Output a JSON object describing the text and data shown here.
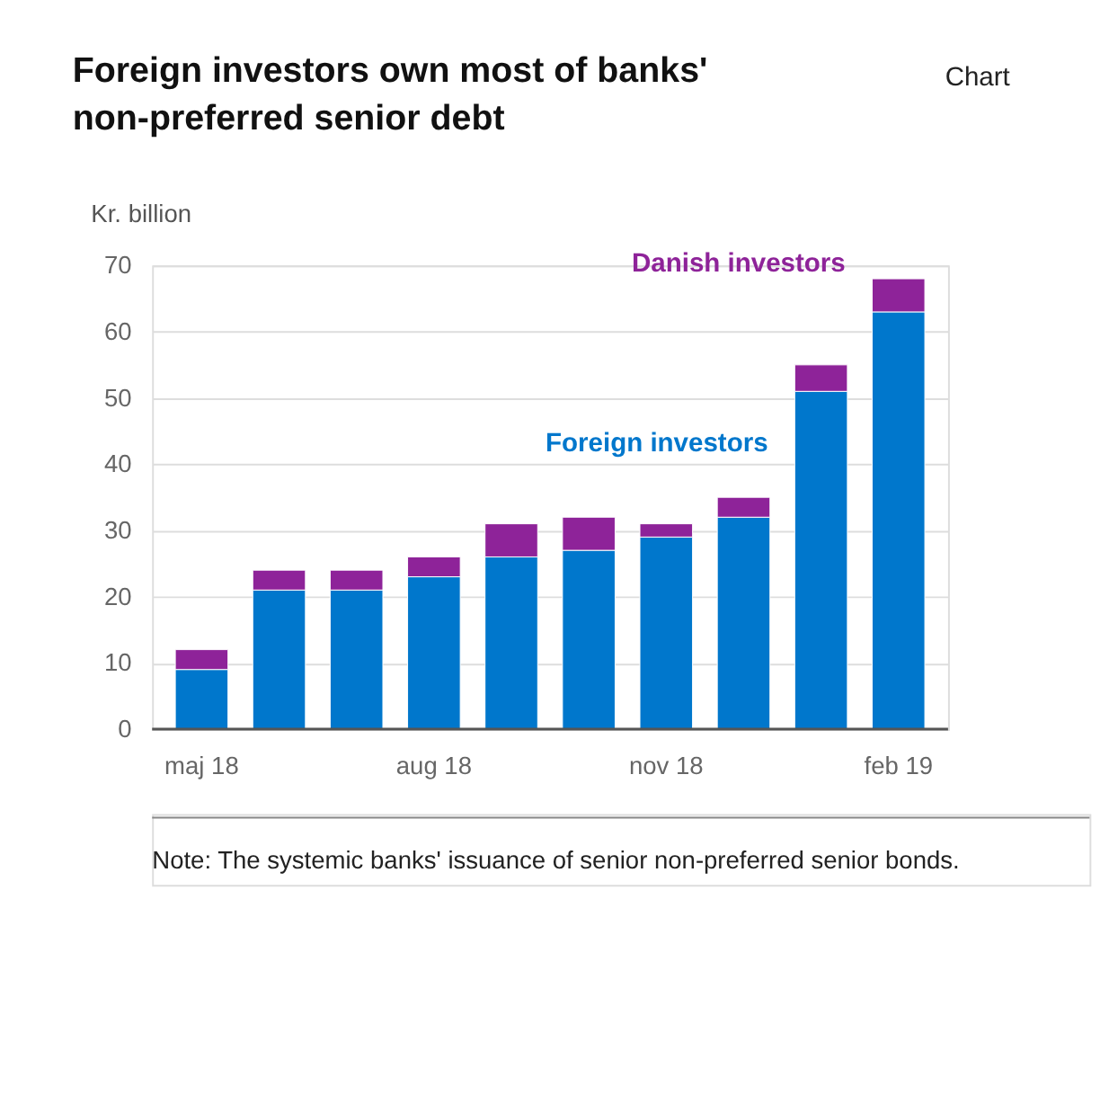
{
  "chart_data": {
    "type": "bar",
    "title": [
      "Foreign investors own most of banks'",
      "non-preferred senior debt"
    ],
    "ylabel": "Kr. billion",
    "categories": [
      "maj 18",
      null,
      null,
      "aug 18",
      null,
      null,
      "nov 18",
      null,
      null,
      "feb 19"
    ],
    "stacked": true,
    "series": [
      {
        "name": "Foreign investors",
        "color": "#0077cc",
        "values": [
          9,
          21,
          21,
          23,
          26,
          27,
          29,
          32,
          51,
          63
        ]
      },
      {
        "name": "Danish investors",
        "color": "#8e2399",
        "values": [
          3,
          3,
          3,
          3,
          5,
          5,
          2,
          3,
          4,
          5
        ]
      }
    ],
    "ylim": [
      0,
      70
    ],
    "yticks": [
      0,
      10,
      20,
      30,
      40,
      50,
      60,
      70
    ],
    "grid": "y",
    "legend": false,
    "annotations": [
      "Chart",
      "Note:  The systemic banks' issuance of senior non-preferred senior bonds."
    ]
  }
}
